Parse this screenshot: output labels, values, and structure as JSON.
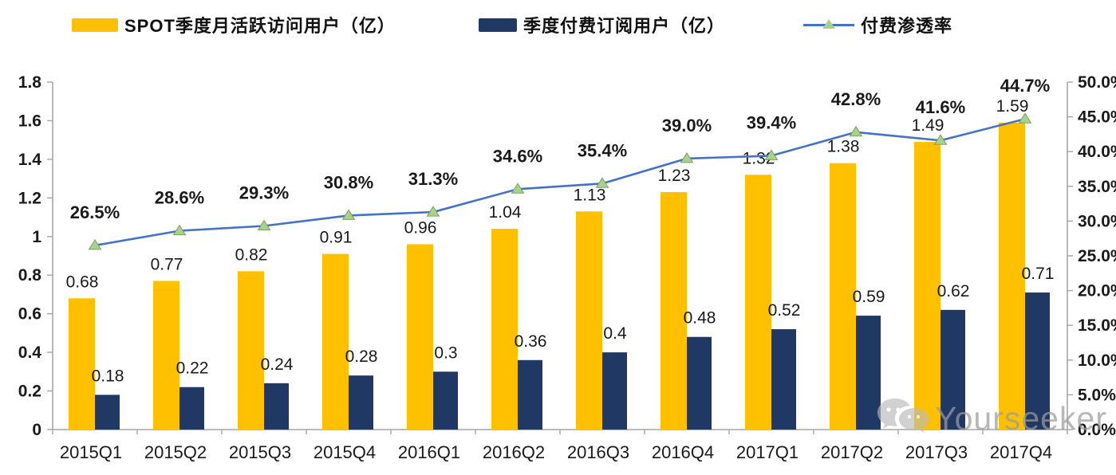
{
  "colors": {
    "mau_bar": "#FFC000",
    "subs_bar": "#1F3864",
    "line": "#4472C4",
    "marker_fill": "#A9D18E",
    "marker_stroke": "#7CA35C",
    "axis_line": "#a6a6a6",
    "axis_text": "#1a1a1a",
    "label_text": "#1a1a1a",
    "watermark": "#9c9c9c"
  },
  "legend": [
    {
      "label": "SPOT季度月活跃访问用户（亿）",
      "type": "bar-swatch"
    },
    {
      "label": "季度付费订阅用户（亿）",
      "type": "bar-swatch"
    },
    {
      "label": "付费渗透率",
      "type": "line-swatch"
    }
  ],
  "watermark": {
    "icon": "wechat-icon",
    "text": "Yourseeker"
  },
  "chart_data": {
    "type": "bar",
    "subtype": "combo-bar-line",
    "categories": [
      "2015Q1",
      "2015Q2",
      "2015Q3",
      "2015Q4",
      "2016Q1",
      "2016Q2",
      "2016Q3",
      "2016Q4",
      "2017Q1",
      "2017Q2",
      "2017Q3",
      "2017Q4"
    ],
    "series": [
      {
        "name": "SPOT季度月活跃访问用户（亿）",
        "type": "bar",
        "axis": "left",
        "values": [
          0.68,
          0.77,
          0.82,
          0.91,
          0.96,
          1.04,
          1.13,
          1.23,
          1.32,
          1.38,
          1.49,
          1.59
        ],
        "labels": [
          "0.68",
          "0.77",
          "0.82",
          "0.91",
          "0.96",
          "1.04",
          "1.13",
          "1.23",
          "1.32",
          "1.38",
          "1.49",
          "1.59"
        ]
      },
      {
        "name": "季度付费订阅用户（亿）",
        "type": "bar",
        "axis": "left",
        "values": [
          0.18,
          0.22,
          0.24,
          0.28,
          0.3,
          0.36,
          0.4,
          0.48,
          0.52,
          0.59,
          0.62,
          0.71
        ],
        "labels": [
          "0.18",
          "0.22",
          "0.24",
          "0.28",
          "0.3",
          "0.36",
          "0.4",
          "0.48",
          "0.52",
          "0.59",
          "0.62",
          "0.71"
        ]
      },
      {
        "name": "付费渗透率",
        "type": "line",
        "axis": "right",
        "values": [
          26.5,
          28.6,
          29.3,
          30.8,
          31.3,
          34.6,
          35.4,
          39.0,
          39.4,
          42.8,
          41.6,
          44.7
        ],
        "labels": [
          "26.5%",
          "28.6%",
          "29.3%",
          "30.8%",
          "31.3%",
          "34.6%",
          "35.4%",
          "39.0%",
          "39.4%",
          "42.8%",
          "41.6%",
          "44.7%"
        ]
      }
    ],
    "left_axis": {
      "min": 0,
      "max": 1.8,
      "tick_values": [
        0,
        0.2,
        0.4,
        0.6,
        0.8,
        1,
        1.2,
        1.4,
        1.6,
        1.8
      ],
      "tick_labels": [
        "0",
        "0.2",
        "0.4",
        "0.6",
        "0.8",
        "1",
        "1.2",
        "1.4",
        "1.6",
        "1.8"
      ]
    },
    "right_axis": {
      "min": 0,
      "max": 50,
      "tick_values": [
        0,
        5,
        10,
        15,
        20,
        25,
        30,
        35,
        40,
        45,
        50
      ],
      "tick_labels": [
        "0.0%",
        "5.0%",
        "10.0%",
        "15.0%",
        "20.0%",
        "25.0%",
        "30.0%",
        "35.0%",
        "40.0%",
        "45.0%",
        "50.0%"
      ]
    },
    "grid": false,
    "legend_position": "top"
  }
}
